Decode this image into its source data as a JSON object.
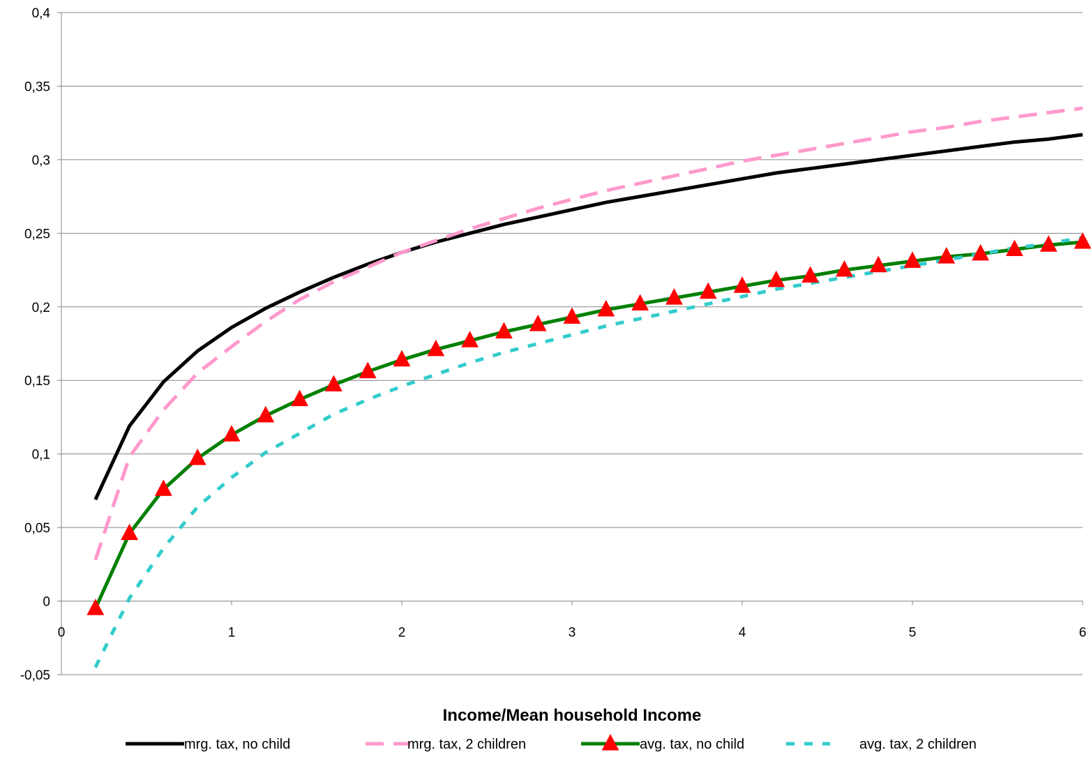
{
  "chart_data": {
    "type": "line",
    "title": "",
    "xlabel": "Income/Mean household Income",
    "ylabel": "",
    "xlim": [
      0,
      6
    ],
    "ylim": [
      -0.05,
      0.4
    ],
    "x_ticks": [
      0,
      1,
      2,
      3,
      4,
      5,
      6
    ],
    "x_tick_labels": [
      "0",
      "1",
      "2",
      "3",
      "4",
      "5",
      "6"
    ],
    "y_ticks": [
      -0.05,
      0,
      0.05,
      0.1,
      0.15,
      0.2,
      0.25,
      0.3,
      0.35,
      0.4
    ],
    "y_tick_labels": [
      "-0,05",
      "0",
      "0,05",
      "0,1",
      "0,15",
      "0,2",
      "0,25",
      "0,3",
      "0,35",
      "0,4"
    ],
    "grid": "horizontal",
    "legend_position": "bottom",
    "x": [
      0.2,
      0.4,
      0.6,
      0.8,
      1.0,
      1.2,
      1.4,
      1.6,
      1.8,
      2.0,
      2.2,
      2.4,
      2.6,
      2.8,
      3.0,
      3.2,
      3.4,
      3.6,
      3.8,
      4.0,
      4.2,
      4.4,
      4.6,
      4.8,
      5.0,
      5.2,
      5.4,
      5.6,
      5.8,
      6.0
    ],
    "series": [
      {
        "name": "mrg.  tax, no child",
        "color": "#000000",
        "style": "solid",
        "marker": "none",
        "values": [
          0.069,
          0.119,
          0.149,
          0.17,
          0.186,
          0.199,
          0.21,
          0.22,
          0.229,
          0.237,
          0.244,
          0.25,
          0.256,
          0.261,
          0.266,
          0.271,
          0.275,
          0.279,
          0.283,
          0.287,
          0.291,
          0.294,
          0.297,
          0.3,
          0.303,
          0.306,
          0.309,
          0.312,
          0.314,
          0.317
        ]
      },
      {
        "name": "mrg. tax, 2 children",
        "color": "#ff99cc",
        "style": "dashed",
        "marker": "none",
        "values": [
          0.028,
          0.098,
          0.13,
          0.155,
          0.173,
          0.19,
          0.205,
          0.217,
          0.227,
          0.237,
          0.245,
          0.253,
          0.26,
          0.267,
          0.273,
          0.279,
          0.284,
          0.289,
          0.294,
          0.299,
          0.303,
          0.307,
          0.311,
          0.315,
          0.319,
          0.322,
          0.326,
          0.329,
          0.332,
          0.335
        ]
      },
      {
        "name": "avg. tax, no child",
        "color": "#008000",
        "style": "solid",
        "marker": "triangle",
        "marker_color": "#ff0000",
        "values": [
          -0.005,
          0.046,
          0.076,
          0.097,
          0.113,
          0.126,
          0.137,
          0.147,
          0.156,
          0.164,
          0.171,
          0.177,
          0.183,
          0.188,
          0.193,
          0.198,
          0.202,
          0.206,
          0.21,
          0.214,
          0.218,
          0.221,
          0.225,
          0.228,
          0.231,
          0.234,
          0.236,
          0.239,
          0.242,
          0.244
        ]
      },
      {
        "name": "avg. tax, 2 children",
        "color": "#33cccc",
        "style": "dashed",
        "marker": "none",
        "values": [
          -0.045,
          0.002,
          0.036,
          0.064,
          0.084,
          0.101,
          0.114,
          0.127,
          0.137,
          0.146,
          0.154,
          0.162,
          0.169,
          0.175,
          0.181,
          0.187,
          0.192,
          0.197,
          0.202,
          0.207,
          0.212,
          0.216,
          0.22,
          0.224,
          0.228,
          0.232,
          0.236,
          0.24,
          0.243,
          0.247
        ]
      }
    ]
  }
}
